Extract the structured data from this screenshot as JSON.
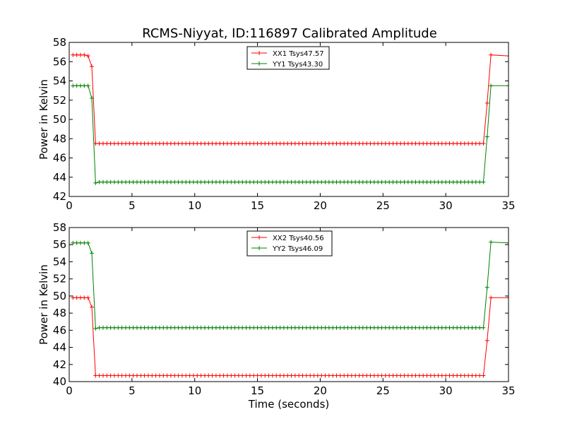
{
  "figure_title": "RCMS-Niyyat, ID:116897 Calibrated Amplitude",
  "chart_data": [
    {
      "type": "line",
      "ylabel": "Power in Kelvin",
      "xlabel": "",
      "xlim": [
        0,
        35
      ],
      "ylim": [
        42,
        58
      ],
      "xticks": [
        0,
        5,
        10,
        15,
        20,
        25,
        30,
        35
      ],
      "yticks": [
        42,
        44,
        46,
        48,
        50,
        52,
        54,
        56,
        58
      ],
      "grid": false,
      "legend": "top-center",
      "series": [
        {
          "name": "XX1 Tsys47.57",
          "color": "#ff0000",
          "x": [
            0.3,
            0.6,
            0.9,
            1.2,
            1.5,
            1.8,
            2.1,
            33.0,
            33.3,
            33.6,
            35.0
          ],
          "y": [
            56.7,
            56.7,
            56.7,
            56.7,
            56.6,
            55.5,
            47.5,
            47.5,
            51.7,
            56.7,
            56.6
          ],
          "plateau": {
            "x_start": 2.1,
            "x_end": 33.0,
            "step": 0.3,
            "y": 47.5
          }
        },
        {
          "name": "YY1 Tsys43.30",
          "color": "#008000",
          "x": [
            0.3,
            0.6,
            0.9,
            1.2,
            1.5,
            1.8,
            2.1,
            33.0,
            33.3,
            33.6,
            35.0
          ],
          "y": [
            53.5,
            53.5,
            53.5,
            53.5,
            53.5,
            52.2,
            43.4,
            43.5,
            48.2,
            53.5,
            53.5
          ],
          "plateau": {
            "x_start": 2.1,
            "x_end": 33.0,
            "step": 0.3,
            "y": 43.5
          }
        }
      ]
    },
    {
      "type": "line",
      "ylabel": "Power in Kelvin",
      "xlabel": "Time (seconds)",
      "xlim": [
        0,
        35
      ],
      "ylim": [
        40,
        58
      ],
      "xticks": [
        0,
        5,
        10,
        15,
        20,
        25,
        30,
        35
      ],
      "yticks": [
        40,
        42,
        44,
        46,
        48,
        50,
        52,
        54,
        56,
        58
      ],
      "grid": false,
      "legend": "top-center",
      "series": [
        {
          "name": "XX2 Tsys40.56",
          "color": "#ff0000",
          "x": [
            0.3,
            0.6,
            0.9,
            1.2,
            1.5,
            1.8,
            2.1,
            33.0,
            33.3,
            33.6,
            35.0
          ],
          "y": [
            49.8,
            49.8,
            49.8,
            49.8,
            49.8,
            48.7,
            40.7,
            40.7,
            44.8,
            49.8,
            49.8
          ],
          "plateau": {
            "x_start": 2.1,
            "x_end": 33.0,
            "step": 0.3,
            "y": 40.7
          }
        },
        {
          "name": "YY2 Tsys46.09",
          "color": "#008000",
          "x": [
            0.3,
            0.6,
            0.9,
            1.2,
            1.5,
            1.8,
            2.1,
            33.0,
            33.3,
            33.6,
            35.0
          ],
          "y": [
            56.2,
            56.2,
            56.2,
            56.2,
            56.2,
            55.0,
            46.2,
            46.3,
            51.0,
            56.3,
            56.2
          ],
          "plateau": {
            "x_start": 2.1,
            "x_end": 33.0,
            "step": 0.3,
            "y": 46.3
          }
        }
      ]
    }
  ]
}
